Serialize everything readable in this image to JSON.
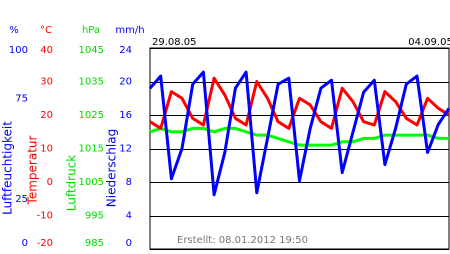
{
  "chart_data": {
    "type": "line",
    "x": [
      0,
      6,
      12,
      18,
      24,
      30,
      36,
      42,
      48,
      54,
      60,
      66,
      72,
      78,
      84,
      90,
      96,
      102,
      108,
      114,
      120,
      126,
      132,
      138,
      144,
      150,
      156,
      162,
      168
    ],
    "xlim": [
      0,
      168
    ],
    "xticks": [
      {
        "value": 0,
        "label": "29.08.05"
      },
      {
        "value": 144,
        "label": "04.09.05"
      }
    ],
    "grid": true,
    "footer": "Erstellt: 08.01.2012 19:50",
    "axes": [
      {
        "unit": "%",
        "label": "Luftfeuchtigkeit",
        "color": "#0000ff",
        "ylim": [
          0,
          100
        ],
        "yticks": [
          100,
          75,
          25,
          0
        ]
      },
      {
        "unit": "°C",
        "label": "Temperatur",
        "color": "#ff0000",
        "ylim": [
          -20,
          40
        ],
        "yticks": [
          40,
          30,
          20,
          10,
          0,
          -10,
          -20
        ]
      },
      {
        "unit": "hPa",
        "label": "Luftdruck",
        "color": "#00dd00",
        "ylim": [
          985,
          1045
        ],
        "yticks": [
          1045,
          1035,
          1025,
          1015,
          1005,
          995,
          985
        ]
      },
      {
        "unit": "mm/h",
        "label": "Niederschlag",
        "color": "#0000ff",
        "ylim": [
          0,
          24
        ],
        "yticks": [
          24,
          20,
          16,
          12,
          8,
          4,
          0
        ]
      }
    ],
    "series": [
      {
        "name": "Luftfeuchtigkeit",
        "axis": 0,
        "color": "#0000ff",
        "values": [
          80,
          86,
          35,
          50,
          82,
          88,
          27,
          48,
          80,
          88,
          28,
          55,
          82,
          85,
          34,
          60,
          80,
          84,
          38,
          58,
          78,
          84,
          42,
          60,
          82,
          86,
          48,
          62,
          70
        ]
      },
      {
        "name": "Temperatur",
        "axis": 1,
        "color": "#ff0000",
        "values": [
          18,
          16,
          27,
          25,
          19,
          17,
          31,
          26,
          19,
          17,
          30,
          25,
          18,
          16,
          25,
          23,
          18,
          16,
          28,
          24,
          18,
          17,
          27,
          24,
          19,
          17,
          25,
          22,
          20
        ]
      },
      {
        "name": "Luftdruck",
        "axis": 2,
        "color": "#00ff00",
        "values": [
          1020,
          1021,
          1020,
          1020,
          1021,
          1021,
          1020,
          1021,
          1021,
          1020,
          1019,
          1019,
          1018,
          1017,
          1016,
          1016,
          1016,
          1016,
          1017,
          1017,
          1018,
          1018,
          1019,
          1019,
          1019,
          1019,
          1019,
          1018,
          1018
        ]
      }
    ]
  }
}
